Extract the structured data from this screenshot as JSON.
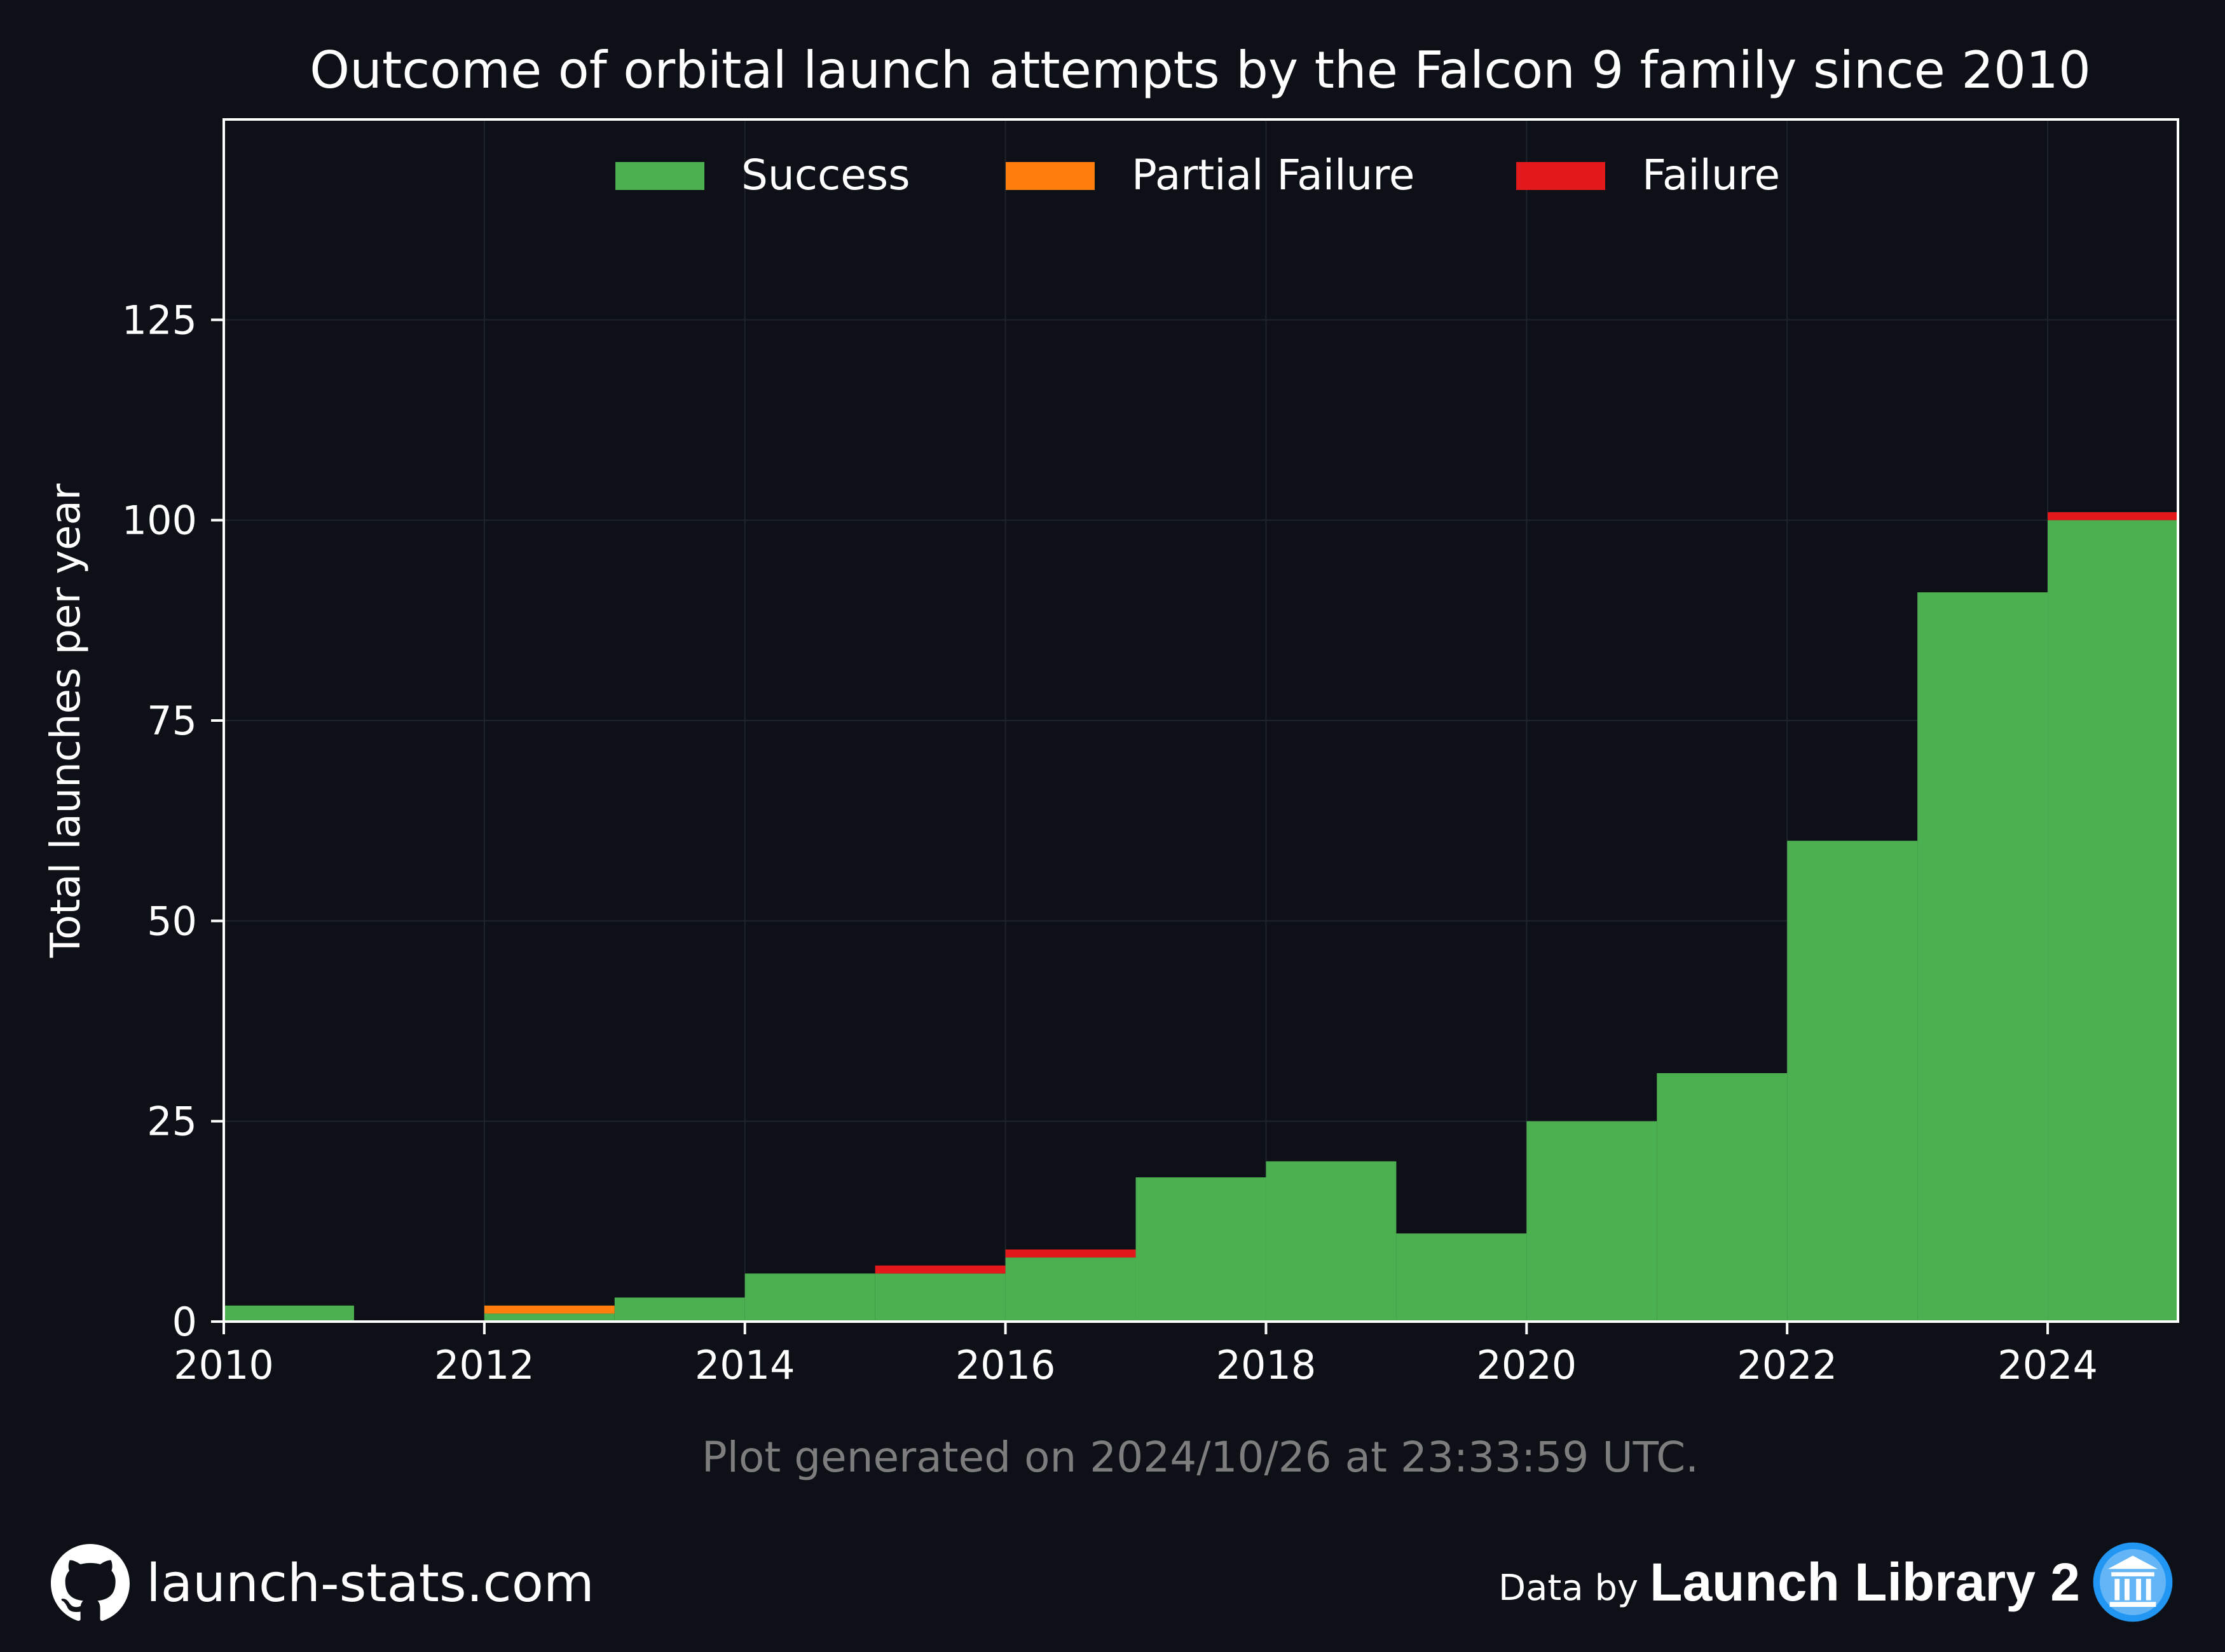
{
  "chart_data": {
    "type": "bar",
    "title": "Outcome of orbital launch attempts by the Falcon 9 family since 2010",
    "ylabel": "Total launches per year",
    "xlabel": "",
    "stacked": true,
    "step_histogram": true,
    "xlim": [
      2010,
      2025
    ],
    "ylim": [
      0,
      150
    ],
    "x_ticks": [
      2010,
      2012,
      2014,
      2016,
      2018,
      2020,
      2022,
      2024
    ],
    "y_ticks": [
      0,
      25,
      50,
      75,
      100,
      125
    ],
    "grid": true,
    "legend_position": "top-center",
    "years": [
      2010,
      2011,
      2012,
      2013,
      2014,
      2015,
      2016,
      2017,
      2018,
      2019,
      2020,
      2021,
      2022,
      2023,
      2024
    ],
    "series": [
      {
        "name": "Success",
        "color": "#4caf50",
        "values": [
          2,
          0,
          1,
          3,
          6,
          6,
          8,
          18,
          20,
          11,
          25,
          31,
          60,
          91,
          100
        ]
      },
      {
        "name": "Partial Failure",
        "color": "#ff7f0e",
        "values": [
          0,
          0,
          1,
          0,
          0,
          0,
          0,
          0,
          0,
          0,
          0,
          0,
          0,
          0,
          0
        ]
      },
      {
        "name": "Failure",
        "color": "#e31a1c",
        "values": [
          0,
          0,
          0,
          0,
          0,
          1,
          1,
          0,
          0,
          0,
          0,
          0,
          0,
          0,
          1
        ]
      }
    ],
    "note": "Plot generated on 2024/10/26 at 23:33:59 UTC."
  },
  "footer": {
    "site": "launch-stats.com",
    "data_by": "Data by",
    "library": "Launch Library 2"
  },
  "colors": {
    "background": "#0d1017",
    "grid": "#1f232b",
    "text": "#ffffff",
    "note": "#7d7d7d"
  },
  "icons": {
    "left": "github-icon",
    "right": "launch-library-icon"
  }
}
